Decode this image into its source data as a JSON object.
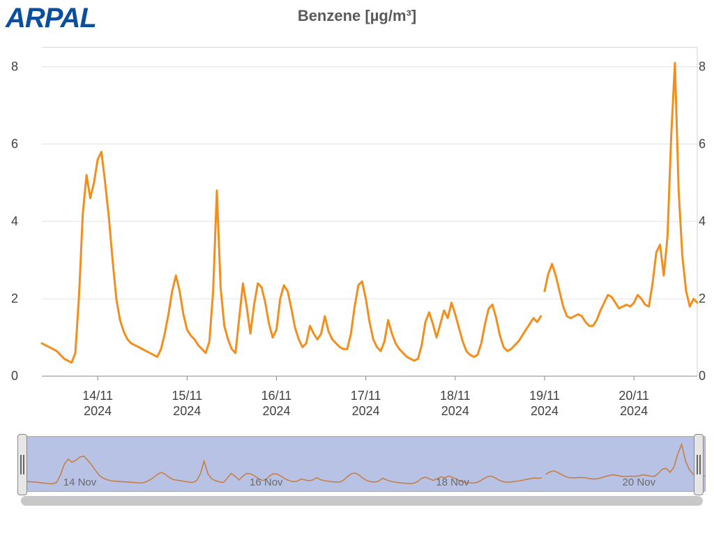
{
  "logo": "ARPAL",
  "title": "Benzene [µg/m³]",
  "chart": {
    "type": "line",
    "line_color": "#f28e1c",
    "line_width": 3,
    "background_color": "#ffffff",
    "grid_color": "#e0e0e0",
    "title_fontsize": 22,
    "title_color": "#5a5a5a",
    "tick_fontsize": 18,
    "tick_color": "#404040",
    "y": {
      "min": 0,
      "max": 8.5,
      "ticks": [
        0,
        2,
        4,
        6,
        8
      ]
    },
    "x_index_range": [
      0,
      176
    ],
    "x_ticks": [
      {
        "idx": 15,
        "line1": "14/11",
        "line2": "2024"
      },
      {
        "idx": 39,
        "line1": "15/11",
        "line2": "2024"
      },
      {
        "idx": 63,
        "line1": "16/11",
        "line2": "2024"
      },
      {
        "idx": 87,
        "line1": "17/11",
        "line2": "2024"
      },
      {
        "idx": 111,
        "line1": "18/11",
        "line2": "2024"
      },
      {
        "idx": 135,
        "line1": "19/11",
        "line2": "2024"
      },
      {
        "idx": 159,
        "line1": "20/11",
        "line2": "2024"
      }
    ],
    "series": [
      {
        "name": "Benzene",
        "gap_indices": [
          135
        ],
        "values": [
          0.85,
          0.8,
          0.75,
          0.7,
          0.65,
          0.55,
          0.45,
          0.4,
          0.35,
          0.6,
          2.1,
          4.2,
          5.2,
          4.6,
          5.0,
          5.6,
          5.8,
          5.0,
          4.1,
          3.0,
          2.0,
          1.45,
          1.15,
          0.95,
          0.85,
          0.8,
          0.75,
          0.7,
          0.65,
          0.6,
          0.55,
          0.5,
          0.7,
          1.1,
          1.6,
          2.2,
          2.6,
          2.2,
          1.6,
          1.2,
          1.05,
          0.95,
          0.8,
          0.7,
          0.6,
          0.9,
          2.2,
          4.8,
          2.3,
          1.3,
          0.95,
          0.7,
          0.6,
          1.5,
          2.4,
          1.8,
          1.1,
          1.85,
          2.4,
          2.3,
          1.9,
          1.35,
          1.0,
          1.2,
          2.0,
          2.35,
          2.2,
          1.75,
          1.25,
          0.95,
          0.75,
          0.85,
          1.3,
          1.1,
          0.95,
          1.1,
          1.55,
          1.15,
          0.95,
          0.85,
          0.75,
          0.7,
          0.7,
          1.1,
          1.8,
          2.35,
          2.45,
          2.0,
          1.4,
          0.95,
          0.75,
          0.65,
          0.9,
          1.45,
          1.1,
          0.85,
          0.7,
          0.6,
          0.5,
          0.45,
          0.4,
          0.45,
          0.8,
          1.4,
          1.65,
          1.35,
          1.0,
          1.35,
          1.7,
          1.5,
          1.9,
          1.6,
          1.25,
          0.9,
          0.65,
          0.55,
          0.5,
          0.55,
          0.85,
          1.35,
          1.75,
          1.85,
          1.5,
          1.05,
          0.75,
          0.65,
          0.7,
          0.8,
          0.9,
          1.05,
          1.2,
          1.35,
          1.5,
          1.4,
          1.55,
          2.2,
          2.65,
          2.9,
          2.6,
          2.2,
          1.8,
          1.55,
          1.5,
          1.55,
          1.6,
          1.55,
          1.4,
          1.3,
          1.3,
          1.45,
          1.7,
          1.9,
          2.1,
          2.05,
          1.9,
          1.75,
          1.8,
          1.85,
          1.8,
          1.9,
          2.1,
          2.0,
          1.85,
          1.8,
          2.4,
          3.2,
          3.4,
          2.6,
          3.6,
          6.2,
          8.1,
          4.8,
          3.1,
          2.2,
          1.8,
          2.0,
          1.9
        ]
      }
    ]
  },
  "range_selector": {
    "background_color": "#b7c2e5",
    "line_color": "#c97b3c",
    "line_width": 1.5,
    "tick_fontsize": 15,
    "tick_color": "#6a6a6a",
    "x_ticks": [
      {
        "idx": 15,
        "label": "14 Nov"
      },
      {
        "idx": 63,
        "label": "16 Nov"
      },
      {
        "idx": 111,
        "label": "18 Nov"
      },
      {
        "idx": 159,
        "label": "20 Nov"
      }
    ],
    "handle_color": "#e6e6e6",
    "scrollbar_color": "#c8c8c8"
  }
}
